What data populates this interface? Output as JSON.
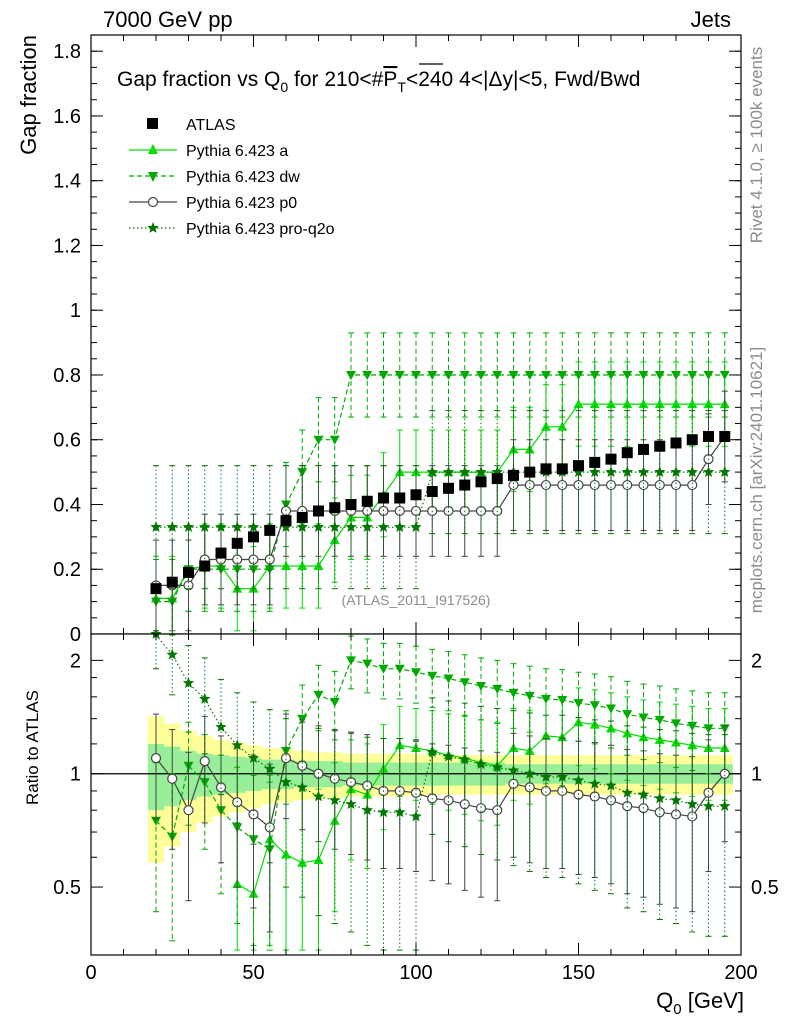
{
  "header": {
    "left": "7000 GeV pp",
    "right": "Jets"
  },
  "side": {
    "top": "Rivet 4.1.0, ≥ 100k events",
    "bottom": "mcplots.cern.ch [arXiv:2401.10621]"
  },
  "chart_data": [
    {
      "type": "line",
      "panel": "main",
      "title": "Gap fraction vs Q0 for 210<#PT<240  4<|Δy|<5, Fwd/Bwd",
      "title_parts": {
        "a": "Gap fraction vs Q",
        "sub": "0",
        "b": " for 210<#",
        "p": "P",
        "t": "T",
        "c": "<240  4<|Δy|<5, Fwd/Bwd"
      },
      "xlabel": "Q0 [GeV]",
      "xlabel_parts": {
        "a": "Q",
        "sub": "0",
        "b": " [GeV]"
      },
      "ylabel": "Gap fraction",
      "xlim": [
        0,
        200
      ],
      "ylim": [
        0,
        1.85
      ],
      "yticks": [
        "0",
        "0.2",
        "0.4",
        "0.6",
        "0.8",
        "1",
        "1.2",
        "1.4",
        "1.6",
        "1.8"
      ],
      "xticks": [
        "0",
        "50",
        "100",
        "150",
        "200"
      ],
      "watermark": "(ATLAS_2011_I917526)",
      "x": [
        20,
        25,
        30,
        35,
        40,
        45,
        50,
        55,
        60,
        65,
        70,
        75,
        80,
        85,
        90,
        95,
        100,
        105,
        110,
        115,
        120,
        125,
        130,
        135,
        140,
        145,
        150,
        155,
        160,
        165,
        170,
        175,
        180,
        185,
        190,
        195
      ],
      "series": [
        {
          "name": "ATLAS",
          "color": "#000000",
          "values": [
            0.14,
            0.16,
            0.19,
            0.21,
            0.25,
            0.28,
            0.3,
            0.32,
            0.35,
            0.36,
            0.38,
            0.39,
            0.4,
            0.41,
            0.42,
            0.42,
            0.43,
            0.44,
            0.45,
            0.46,
            0.47,
            0.48,
            0.49,
            0.5,
            0.51,
            0.51,
            0.52,
            0.53,
            0.54,
            0.56,
            0.57,
            0.58,
            0.59,
            0.6,
            0.61,
            0.61
          ],
          "err": 0.012
        },
        {
          "name": "Pythia 6.423 a",
          "color": "#00dd00",
          "values": [
            0.11,
            0.11,
            0.2,
            0.21,
            0.21,
            0.14,
            0.14,
            0.21,
            0.21,
            0.21,
            0.21,
            0.29,
            0.36,
            0.36,
            0.43,
            0.5,
            0.5,
            0.5,
            0.5,
            0.5,
            0.5,
            0.5,
            0.57,
            0.57,
            0.64,
            0.64,
            0.71,
            0.71,
            0.71,
            0.71,
            0.71,
            0.71,
            0.71,
            0.71,
            0.71,
            0.71
          ],
          "err": 0.13
        },
        {
          "name": "Pythia 6.423 dw",
          "color": "#00aa00",
          "values": [
            0.1,
            0.1,
            0.2,
            0.2,
            0.2,
            0.2,
            0.2,
            0.2,
            0.4,
            0.5,
            0.6,
            0.6,
            0.8,
            0.8,
            0.8,
            0.8,
            0.8,
            0.8,
            0.8,
            0.8,
            0.8,
            0.8,
            0.8,
            0.8,
            0.8,
            0.8,
            0.8,
            0.8,
            0.8,
            0.8,
            0.8,
            0.8,
            0.8,
            0.8,
            0.8,
            0.8
          ],
          "err": 0.13
        },
        {
          "name": "Pythia 6.423 p0",
          "color": "#444444",
          "values": [
            0.15,
            0.15,
            0.15,
            0.23,
            0.23,
            0.23,
            0.23,
            0.23,
            0.38,
            0.38,
            0.38,
            0.38,
            0.38,
            0.38,
            0.38,
            0.38,
            0.38,
            0.38,
            0.38,
            0.38,
            0.38,
            0.38,
            0.46,
            0.46,
            0.46,
            0.46,
            0.46,
            0.46,
            0.46,
            0.46,
            0.46,
            0.46,
            0.46,
            0.46,
            0.54,
            0.61
          ],
          "err": 0.14
        },
        {
          "name": "Pythia 6.423 pro-q2o",
          "color": "#007700",
          "values": [
            0.33,
            0.33,
            0.33,
            0.33,
            0.33,
            0.33,
            0.33,
            0.33,
            0.33,
            0.33,
            0.33,
            0.33,
            0.33,
            0.33,
            0.33,
            0.33,
            0.33,
            0.5,
            0.5,
            0.5,
            0.5,
            0.5,
            0.5,
            0.5,
            0.5,
            0.5,
            0.5,
            0.5,
            0.5,
            0.5,
            0.5,
            0.5,
            0.5,
            0.5,
            0.5,
            0.5
          ],
          "err": 0.19
        }
      ]
    },
    {
      "type": "line",
      "panel": "ratio",
      "ylabel": "Ratio to ATLAS",
      "xlim": [
        0,
        200
      ],
      "ylim": [
        0.33,
        2.35
      ],
      "yticks": [
        "0.5",
        "1",
        "2"
      ],
      "x": [
        20,
        25,
        30,
        35,
        40,
        45,
        50,
        55,
        60,
        65,
        70,
        75,
        80,
        85,
        90,
        95,
        100,
        105,
        110,
        115,
        120,
        125,
        130,
        135,
        140,
        145,
        150,
        155,
        160,
        165,
        170,
        175,
        180,
        185,
        190,
        195
      ],
      "band_inner": [
        0.2,
        0.18,
        0.15,
        0.13,
        0.12,
        0.11,
        0.1,
        0.09,
        0.09,
        0.08,
        0.08,
        0.08,
        0.07,
        0.07,
        0.07,
        0.07,
        0.07,
        0.07,
        0.07,
        0.07,
        0.07,
        0.07,
        0.06,
        0.06,
        0.06,
        0.06,
        0.06,
        0.06,
        0.06,
        0.06,
        0.06,
        0.06,
        0.06,
        0.06,
        0.06,
        0.06
      ],
      "band_outer": [
        0.42,
        0.36,
        0.3,
        0.26,
        0.23,
        0.21,
        0.19,
        0.17,
        0.16,
        0.15,
        0.14,
        0.14,
        0.13,
        0.13,
        0.13,
        0.13,
        0.13,
        0.12,
        0.12,
        0.12,
        0.12,
        0.12,
        0.12,
        0.12,
        0.12,
        0.12,
        0.12,
        0.12,
        0.12,
        0.12,
        0.12,
        0.12,
        0.12,
        0.12,
        0.12,
        0.12
      ],
      "series": [
        {
          "name": "Pythia 6.423 a",
          "values": [
            null,
            null,
            null,
            null,
            null,
            0.51,
            0.48,
            0.67,
            0.61,
            0.58,
            0.59,
            0.75,
            0.91,
            0.88,
            1.03,
            1.19,
            1.17,
            1.15,
            1.12,
            1.1,
            1.07,
            1.05,
            1.17,
            1.15,
            1.26,
            1.25,
            1.37,
            1.35,
            1.32,
            1.28,
            1.25,
            1.23,
            1.21,
            1.19,
            1.17,
            1.17
          ],
          "err": 0.32
        },
        {
          "name": "Pythia 6.423 dw",
          "values": [
            0.75,
            0.68,
            1.05,
            0.95,
            0.8,
            0.72,
            0.67,
            0.63,
            1.15,
            1.4,
            1.62,
            1.55,
            2.0,
            1.96,
            1.9,
            1.9,
            1.86,
            1.82,
            1.79,
            1.75,
            1.71,
            1.68,
            1.64,
            1.61,
            1.58,
            1.57,
            1.54,
            1.52,
            1.49,
            1.44,
            1.41,
            1.39,
            1.36,
            1.34,
            1.32,
            1.32
          ],
          "err": 0.32
        },
        {
          "name": "Pythia 6.423 p0",
          "values": [
            1.1,
            0.97,
            0.8,
            1.08,
            0.92,
            0.84,
            0.78,
            0.72,
            1.1,
            1.05,
            1.0,
            0.97,
            0.95,
            0.93,
            0.9,
            0.9,
            0.89,
            0.86,
            0.85,
            0.83,
            0.81,
            0.8,
            0.94,
            0.92,
            0.9,
            0.9,
            0.88,
            0.87,
            0.85,
            0.82,
            0.81,
            0.79,
            0.78,
            0.77,
            0.89,
            1.0
          ],
          "err": 0.34
        },
        {
          "name": "Pythia 6.423 pro-q2o",
          "values": [
            2.35,
            2.07,
            1.74,
            1.58,
            1.33,
            1.19,
            1.1,
            1.03,
            0.95,
            0.92,
            0.87,
            0.85,
            0.83,
            0.8,
            0.79,
            0.79,
            0.77,
            1.14,
            1.11,
            1.09,
            1.06,
            1.04,
            1.02,
            1.0,
            0.98,
            0.98,
            0.96,
            0.94,
            0.93,
            0.89,
            0.88,
            0.86,
            0.85,
            0.83,
            0.82,
            0.82
          ],
          "err": 0.45
        }
      ]
    }
  ]
}
